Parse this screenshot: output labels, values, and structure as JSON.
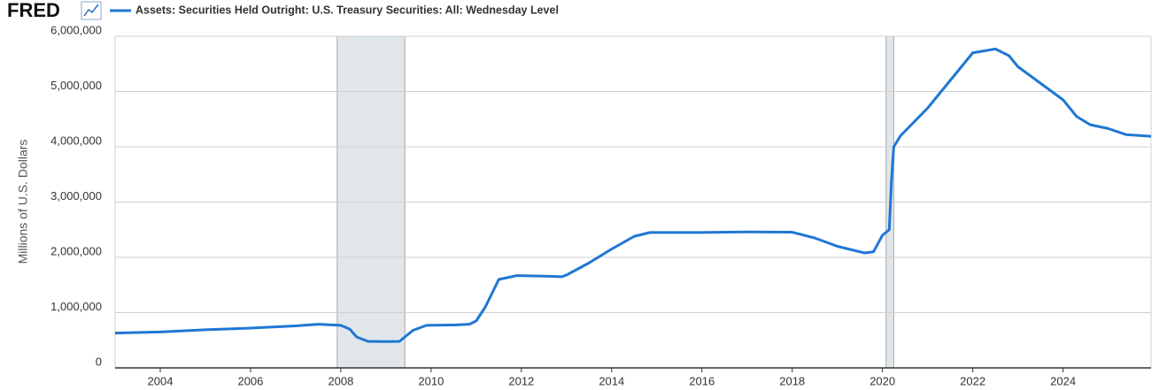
{
  "logo": "FRED",
  "chart_data": {
    "type": "line",
    "y_label": "Millions of U.S. Dollars",
    "grid": true,
    "series": [
      {
        "name": "Assets: Securities Held Outright: U.S. Treasury Securities: All: Wednesday Level",
        "color": "#1f77d4",
        "x": [
          2003.0,
          2004.0,
          2005.0,
          2006.0,
          2007.0,
          2007.5,
          2008.0,
          2008.2,
          2008.35,
          2008.6,
          2009.0,
          2009.3,
          2009.6,
          2009.9,
          2010.5,
          2010.85,
          2011.0,
          2011.2,
          2011.5,
          2011.9,
          2012.5,
          2012.9,
          2013.0,
          2013.5,
          2014.0,
          2014.5,
          2014.85,
          2016.0,
          2017.0,
          2018.0,
          2018.5,
          2019.0,
          2019.6,
          2019.8,
          2020.0,
          2020.15,
          2020.2,
          2020.25,
          2020.4,
          2021.0,
          2021.5,
          2022.0,
          2022.5,
          2022.8,
          2023.0,
          2023.5,
          2024.0,
          2024.3,
          2024.6,
          2025.0,
          2025.4,
          2025.95
        ],
        "values": [
          630000,
          650000,
          690000,
          720000,
          760000,
          790000,
          770000,
          700000,
          560000,
          480000,
          475000,
          480000,
          680000,
          770000,
          776000,
          790000,
          850000,
          1100000,
          1600000,
          1670000,
          1660000,
          1650000,
          1680000,
          1900000,
          2150000,
          2380000,
          2450000,
          2450000,
          2460000,
          2455000,
          2350000,
          2200000,
          2080000,
          2100000,
          2400000,
          2500000,
          3400000,
          4000000,
          4200000,
          4700000,
          5200000,
          5700000,
          5770000,
          5650000,
          5450000,
          5150000,
          4850000,
          4550000,
          4400000,
          4330000,
          4220000,
          4190000
        ]
      }
    ],
    "recessions": [
      [
        2007.92,
        2009.42
      ],
      [
        2020.08,
        2020.25
      ]
    ],
    "xlim": [
      2003.0,
      2025.95
    ],
    "xticks": [
      2004,
      2006,
      2008,
      2010,
      2012,
      2014,
      2016,
      2018,
      2020,
      2022,
      2024
    ],
    "ylim": [
      0,
      6000000
    ],
    "yticks": [
      0,
      {
        "value": 1000000,
        "label": "1,000,000"
      },
      {
        "value": 2000000,
        "label": "2,000,000"
      },
      {
        "value": 3000000,
        "label": "3,000,000"
      },
      {
        "value": 4000000,
        "label": "4,000,000"
      },
      {
        "value": 5000000,
        "label": "5,000,000"
      },
      {
        "value": 6000000,
        "label": "6,000,000"
      }
    ]
  }
}
